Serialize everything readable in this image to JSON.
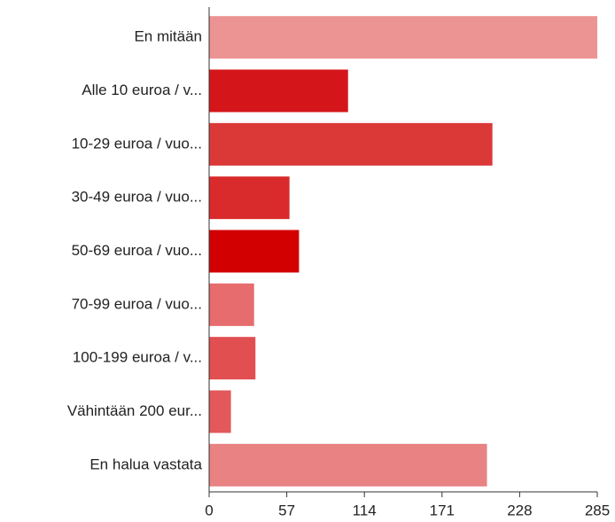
{
  "chart_data": {
    "type": "bar",
    "orientation": "horizontal",
    "categories": [
      "En mitään",
      "Alle 10 euroa / v...",
      "10-29 euroa / vuo...",
      "30-49 euroa / vuo...",
      "50-69 euroa / vuo...",
      "70-99 euroa / vuo...",
      "100-199 euroa / v...",
      "Vähintään 200 eur...",
      "En halua vastata"
    ],
    "values": [
      285,
      102,
      208,
      59,
      66,
      33,
      34,
      16,
      204
    ],
    "colors": [
      "#ec9494",
      "#d4161a",
      "#db3838",
      "#d92a2c",
      "#d20000",
      "#e66c6e",
      "#e14f50",
      "#e3585a",
      "#e88283"
    ],
    "xlim": [
      0,
      285
    ],
    "xticks": [
      0,
      57,
      114,
      171,
      228,
      285
    ]
  }
}
